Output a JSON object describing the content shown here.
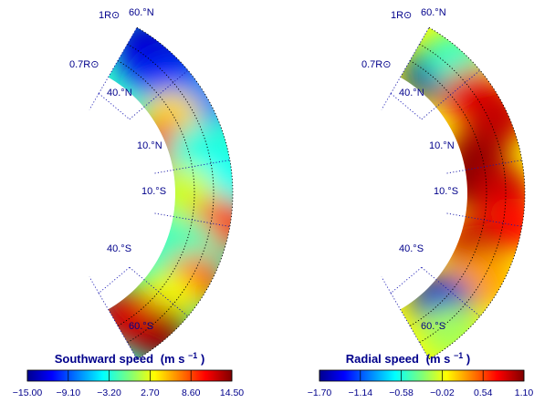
{
  "chart_data": [
    {
      "type": "heatmap",
      "title": "Southward speed (m s⁻¹)",
      "colorbar": {
        "label_main": "Southward speed",
        "label_unit": "(m s",
        "label_exp": "−1",
        "ticks": [
          "−15.00",
          "−9.10",
          "−3.20",
          "2.70",
          "8.60",
          "14.50"
        ],
        "range": [
          -15.0,
          14.5
        ],
        "colormap": "jet"
      },
      "radius_labels": [
        "1R⊙",
        "0.7R⊙"
      ],
      "latitude_labels": [
        "60.°N",
        "40.°N",
        "10.°N",
        "10.°S",
        "40.°S",
        "60.°S"
      ],
      "radial_range": [
        0.7,
        1.0
      ],
      "latitude_range": [
        -60,
        60
      ],
      "field": [
        {
          "lat": 55,
          "r": 0.95,
          "value": -14
        },
        {
          "lat": 50,
          "r": 0.9,
          "value": -12
        },
        {
          "lat": 45,
          "r": 0.98,
          "value": -13
        },
        {
          "lat": 40,
          "r": 0.88,
          "value": -10
        },
        {
          "lat": 30,
          "r": 0.95,
          "value": -8
        },
        {
          "lat": 30,
          "r": 0.78,
          "value": 4
        },
        {
          "lat": 20,
          "r": 0.72,
          "value": 10
        },
        {
          "lat": 15,
          "r": 0.85,
          "value": -3
        },
        {
          "lat": 5,
          "r": 0.9,
          "value": -4
        },
        {
          "lat": 0,
          "r": 0.75,
          "value": 2
        },
        {
          "lat": -10,
          "r": 0.95,
          "value": 9
        },
        {
          "lat": -20,
          "r": 0.8,
          "value": -2
        },
        {
          "lat": -30,
          "r": 0.92,
          "value": 8
        },
        {
          "lat": -40,
          "r": 0.85,
          "value": 3
        },
        {
          "lat": -50,
          "r": 0.95,
          "value": 14
        },
        {
          "lat": -55,
          "r": 0.78,
          "value": 12
        }
      ]
    },
    {
      "type": "heatmap",
      "title": "Radial speed (m s⁻¹)",
      "colorbar": {
        "label_main": "Radial speed",
        "label_unit": "(m s",
        "label_exp": "−1",
        "ticks": [
          "−1.70",
          "−1.14",
          "−0.58",
          "−0.02",
          "0.54",
          "1.10"
        ],
        "range": [
          -1.7,
          1.1
        ],
        "colormap": "jet"
      },
      "radius_labels": [
        "1R⊙",
        "0.7R⊙"
      ],
      "latitude_labels": [
        "60.°N",
        "40.°N",
        "10.°N",
        "10.°S",
        "40.°S",
        "60.°S"
      ],
      "radial_range": [
        0.7,
        1.0
      ],
      "latitude_range": [
        -60,
        60
      ],
      "field": [
        {
          "lat": 50,
          "r": 0.82,
          "value": -1.6
        },
        {
          "lat": 48,
          "r": 0.95,
          "value": -0.5
        },
        {
          "lat": 35,
          "r": 0.9,
          "value": 0.8
        },
        {
          "lat": 25,
          "r": 0.95,
          "value": 0.9
        },
        {
          "lat": 15,
          "r": 0.78,
          "value": 1.0
        },
        {
          "lat": 5,
          "r": 0.72,
          "value": 1.1
        },
        {
          "lat": 0,
          "r": 0.88,
          "value": 0.9
        },
        {
          "lat": -10,
          "r": 0.95,
          "value": 0.7
        },
        {
          "lat": -20,
          "r": 0.78,
          "value": 0.9
        },
        {
          "lat": -30,
          "r": 0.9,
          "value": 0.3
        },
        {
          "lat": -45,
          "r": 0.8,
          "value": -1.5
        },
        {
          "lat": -50,
          "r": 0.95,
          "value": -0.2
        }
      ]
    }
  ]
}
